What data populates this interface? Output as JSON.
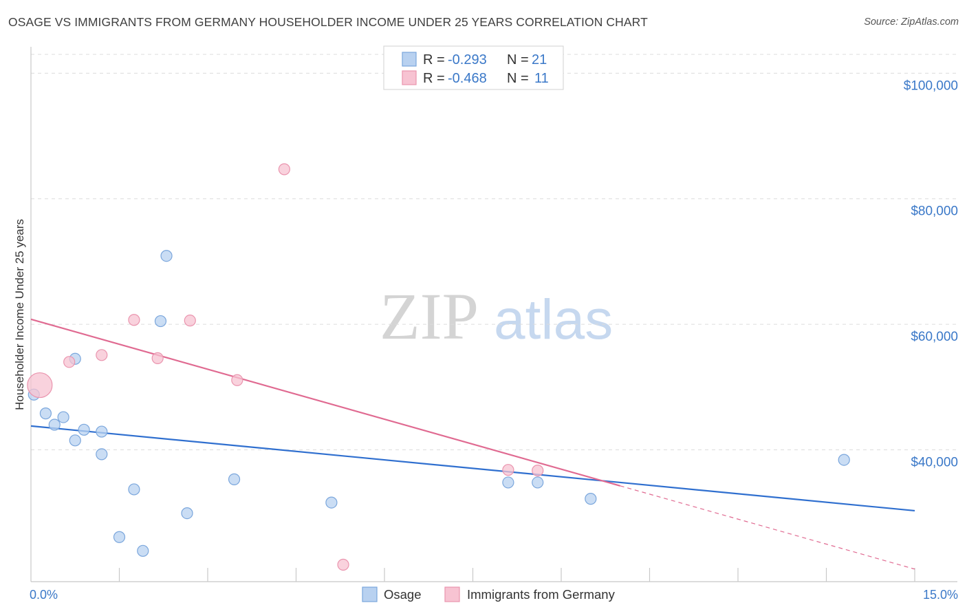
{
  "title": "OSAGE VS IMMIGRANTS FROM GERMANY HOUSEHOLDER INCOME UNDER 25 YEARS CORRELATION CHART",
  "source": "Source: ZipAtlas.com",
  "watermark": {
    "zip": "ZIP",
    "atlas": "atlas"
  },
  "colors": {
    "blue_fill": "#b8d1f0",
    "blue_stroke": "#7aa6dc",
    "blue_line": "#2f6fcf",
    "pink_fill": "#f7c3d2",
    "pink_stroke": "#ea94ae",
    "pink_line": "#e06a91",
    "tick_text": "#3a78c8",
    "grid": "#dcdcdc"
  },
  "legend_top": [
    {
      "r_label": "R =",
      "r_value": "-0.293",
      "n_label": "N =",
      "n_value": "21",
      "series": "osage"
    },
    {
      "r_label": "R =",
      "r_value": "-0.468",
      "n_label": "N =",
      "n_value": "11",
      "series": "germany"
    }
  ],
  "chart_data": {
    "type": "scatter",
    "title": "OSAGE VS IMMIGRANTS FROM GERMANY HOUSEHOLDER INCOME UNDER 25 YEARS CORRELATION CHART",
    "xlabel": "",
    "ylabel": "Householder Income Under 25 years",
    "xlim": [
      0,
      15
    ],
    "ylim": [
      19000,
      103000
    ],
    "x_tick_labels": [
      {
        "value": 0,
        "label": "0.0%"
      },
      {
        "value": 15,
        "label": "15.0%"
      }
    ],
    "y_ticks": [
      {
        "value": 40000,
        "label": "$40,000"
      },
      {
        "value": 60000,
        "label": "$60,000"
      },
      {
        "value": 80000,
        "label": "$80,000"
      },
      {
        "value": 100000,
        "label": "$100,000"
      }
    ],
    "grid": true,
    "series": [
      {
        "name": "Osage",
        "color": "#b8d1f0",
        "points": [
          {
            "x": 0.05,
            "y": 48800,
            "big": false
          },
          {
            "x": 0.25,
            "y": 45800,
            "big": false
          },
          {
            "x": 0.4,
            "y": 44000,
            "big": false
          },
          {
            "x": 0.55,
            "y": 45200,
            "big": false
          },
          {
            "x": 0.75,
            "y": 41500,
            "big": false
          },
          {
            "x": 0.9,
            "y": 43200,
            "big": false
          },
          {
            "x": 0.75,
            "y": 54500,
            "big": false
          },
          {
            "x": 1.2,
            "y": 42900,
            "big": false
          },
          {
            "x": 1.2,
            "y": 39300,
            "big": false
          },
          {
            "x": 1.75,
            "y": 33700,
            "big": false
          },
          {
            "x": 1.5,
            "y": 26100,
            "big": false
          },
          {
            "x": 1.9,
            "y": 23900,
            "big": false
          },
          {
            "x": 2.65,
            "y": 29900,
            "big": false
          },
          {
            "x": 2.2,
            "y": 60500,
            "big": false
          },
          {
            "x": 2.3,
            "y": 70900,
            "big": false
          },
          {
            "x": 3.45,
            "y": 35300,
            "big": false
          },
          {
            "x": 5.1,
            "y": 31600,
            "big": false
          },
          {
            "x": 8.1,
            "y": 34800,
            "big": false
          },
          {
            "x": 8.6,
            "y": 34800,
            "big": false
          },
          {
            "x": 9.5,
            "y": 32200,
            "big": false
          },
          {
            "x": 13.8,
            "y": 38400,
            "big": false
          }
        ],
        "trend": {
          "x0": 0,
          "y0": 43800,
          "x1": 15,
          "y1": 30300,
          "x_solid_end": 15
        }
      },
      {
        "name": "Immigrants from Germany",
        "color": "#f7c3d2",
        "points": [
          {
            "x": 0.15,
            "y": 50300,
            "big": true
          },
          {
            "x": 0.65,
            "y": 54000,
            "big": false
          },
          {
            "x": 1.2,
            "y": 55100,
            "big": false
          },
          {
            "x": 1.75,
            "y": 60700,
            "big": false
          },
          {
            "x": 2.15,
            "y": 54600,
            "big": false
          },
          {
            "x": 2.7,
            "y": 60600,
            "big": false
          },
          {
            "x": 3.5,
            "y": 51100,
            "big": false
          },
          {
            "x": 4.3,
            "y": 84700,
            "big": false
          },
          {
            "x": 5.3,
            "y": 21700,
            "big": false
          },
          {
            "x": 8.1,
            "y": 36800,
            "big": false
          },
          {
            "x": 8.6,
            "y": 36700,
            "big": false
          }
        ],
        "trend": {
          "x0": 0,
          "y0": 60800,
          "x1": 15,
          "y1": 21000,
          "x_solid_end": 10
        }
      }
    ]
  },
  "legend_bottom": [
    {
      "label": "Osage",
      "series": "osage"
    },
    {
      "label": "Immigrants from Germany",
      "series": "germany"
    }
  ]
}
